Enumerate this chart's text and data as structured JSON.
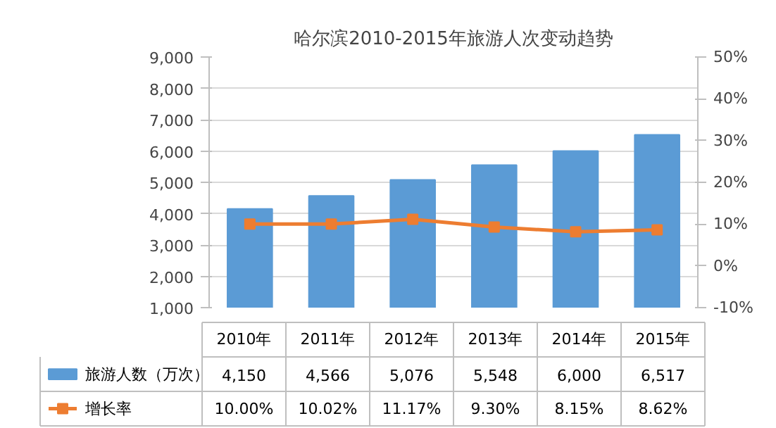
{
  "chart_data": {
    "type": "bar",
    "title": "哈尔滨2010-2015年旅游人次变动趋势",
    "categories": [
      "2010年",
      "2011年",
      "2012年",
      "2013年",
      "2014年",
      "2015年"
    ],
    "series": [
      {
        "name": "旅游人数（万次）",
        "color": "#5b9bd5",
        "values": [
          4150,
          4566,
          5076,
          5548,
          6000,
          6517
        ],
        "value_labels": [
          "4,150",
          "4,566",
          "5,076",
          "5,548",
          "6,000",
          "6,517"
        ]
      },
      {
        "name": "增长率",
        "type": "line",
        "axis": "y2",
        "color": "#ed7d31",
        "values": [
          10.0,
          10.02,
          11.17,
          9.3,
          8.15,
          8.62
        ],
        "value_labels": [
          "10.00%",
          "10.02%",
          "11.17%",
          "9.30%",
          "8.15%",
          "8.62%"
        ]
      }
    ],
    "marker": "square",
    "grid": "y",
    "legend": "bottom",
    "ylim": [
      1000,
      9000
    ],
    "yticks": [
      {
        "value": 1000,
        "label": "1,000"
      },
      {
        "value": 2000,
        "label": "2,000"
      },
      {
        "value": 3000,
        "label": "3,000"
      },
      {
        "value": 4000,
        "label": "4,000"
      },
      {
        "value": 5000,
        "label": "5,000"
      },
      {
        "value": 6000,
        "label": "6,000"
      },
      {
        "value": 7000,
        "label": "7,000"
      },
      {
        "value": 8000,
        "label": "8,000"
      },
      {
        "value": 9000,
        "label": "9,000"
      }
    ],
    "y2lim": [
      -10,
      50
    ],
    "y2ticks": [
      {
        "value": -10,
        "label": "-10%"
      },
      {
        "value": 0,
        "label": "0%"
      },
      {
        "value": 10,
        "label": "10%"
      },
      {
        "value": 20,
        "label": "20%"
      },
      {
        "value": 30,
        "label": "30%"
      },
      {
        "value": 40,
        "label": "40%"
      },
      {
        "value": 50,
        "label": "50%"
      }
    ]
  }
}
